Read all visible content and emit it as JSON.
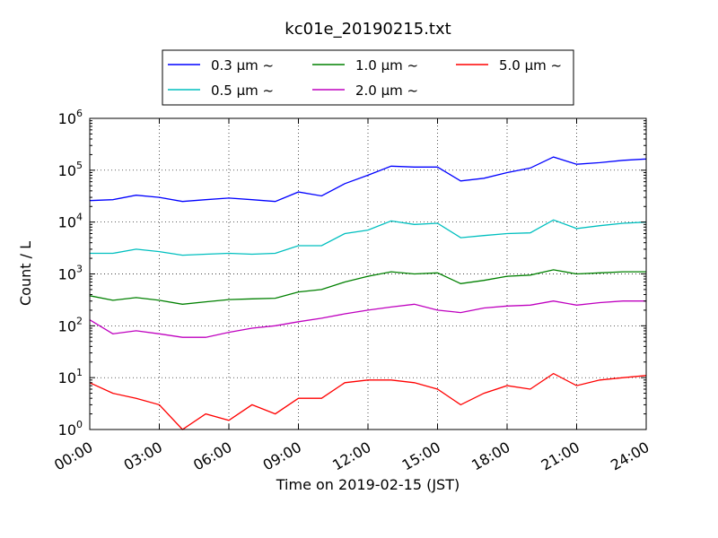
{
  "chart_data": {
    "type": "line",
    "title": "kc01e_20190215.txt",
    "xlabel": "Time on 2019-02-15 (JST)",
    "ylabel": "Count / L",
    "yscale": "log",
    "ylim": [
      1,
      1000000
    ],
    "xlim": [
      "00:00",
      "24:00"
    ],
    "x_ticks": [
      "00:00",
      "03:00",
      "06:00",
      "09:00",
      "12:00",
      "15:00",
      "18:00",
      "21:00",
      "24:00"
    ],
    "y_ticks": [
      {
        "base": "10",
        "exp": "0"
      },
      {
        "base": "10",
        "exp": "1"
      },
      {
        "base": "10",
        "exp": "2"
      },
      {
        "base": "10",
        "exp": "3"
      },
      {
        "base": "10",
        "exp": "4"
      },
      {
        "base": "10",
        "exp": "5"
      },
      {
        "base": "10",
        "exp": "6"
      }
    ],
    "grid": true,
    "legend_position": "top-center",
    "x": [
      "00:00",
      "01:00",
      "02:00",
      "03:00",
      "04:00",
      "05:00",
      "06:00",
      "07:00",
      "08:00",
      "09:00",
      "10:00",
      "11:00",
      "12:00",
      "13:00",
      "14:00",
      "15:00",
      "16:00",
      "17:00",
      "18:00",
      "19:00",
      "20:00",
      "21:00",
      "22:00",
      "23:00",
      "24:00"
    ],
    "series": [
      {
        "name": "0.3 μm ~",
        "color": "#0000ff",
        "values": [
          26000,
          27000,
          33000,
          30000,
          25000,
          27000,
          29000,
          27000,
          25000,
          38000,
          32000,
          55000,
          80000,
          120000,
          115000,
          115000,
          62000,
          70000,
          90000,
          110000,
          180000,
          130000,
          140000,
          155000,
          165000
        ]
      },
      {
        "name": "0.5 μm ~",
        "color": "#00bfbf",
        "values": [
          2500,
          2500,
          3000,
          2700,
          2300,
          2400,
          2500,
          2400,
          2500,
          3500,
          3500,
          6000,
          7000,
          10500,
          9000,
          9500,
          5000,
          5500,
          6000,
          6200,
          11000,
          7500,
          8500,
          9500,
          10000
        ]
      },
      {
        "name": "1.0 μm ~",
        "color": "#008000",
        "values": [
          380,
          310,
          350,
          310,
          260,
          290,
          320,
          330,
          340,
          450,
          500,
          700,
          900,
          1100,
          1000,
          1050,
          650,
          750,
          900,
          950,
          1200,
          1000,
          1050,
          1100,
          1100
        ]
      },
      {
        "name": "2.0 μm ~",
        "color": "#bf00bf",
        "values": [
          130,
          70,
          80,
          70,
          60,
          60,
          75,
          90,
          100,
          120,
          140,
          170,
          200,
          230,
          260,
          200,
          180,
          220,
          240,
          250,
          300,
          250,
          280,
          300,
          300
        ]
      },
      {
        "name": "5.0 μm ~",
        "color": "#ff0000",
        "values": [
          8,
          5,
          4,
          3,
          1,
          2,
          1.5,
          3,
          2,
          4,
          4,
          8,
          9,
          9,
          8,
          6,
          3,
          5,
          7,
          6,
          12,
          7,
          9,
          10,
          11
        ]
      }
    ]
  }
}
